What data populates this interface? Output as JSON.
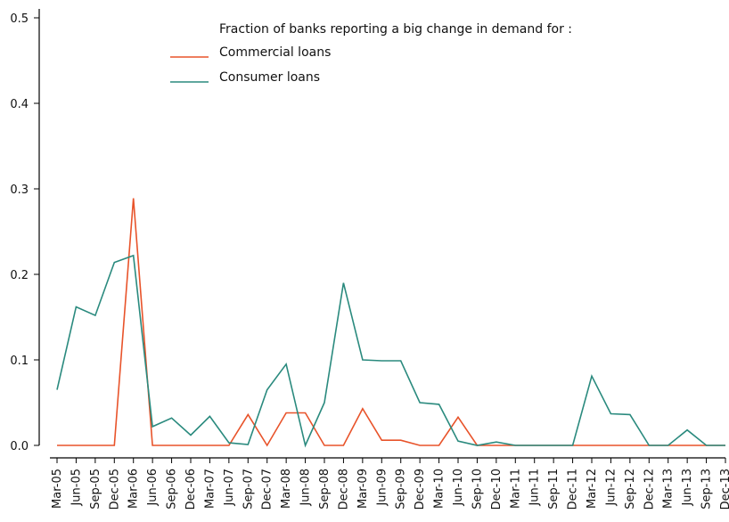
{
  "chart_data": {
    "type": "line",
    "title": "",
    "xlabel": "",
    "ylabel": "",
    "ylim": [
      0,
      0.5
    ],
    "yticks": [
      "0.0",
      "0.1",
      "0.2",
      "0.3",
      "0.4",
      "0.5"
    ],
    "grid": false,
    "legend": {
      "placement": "top-center",
      "title": "Fraction of banks reporting a big change in demand for :"
    },
    "categories": [
      "Mar-05",
      "Jun-05",
      "Sep-05",
      "Dec-05",
      "Mar-06",
      "Jun-06",
      "Sep-06",
      "Dec-06",
      "Mar-07",
      "Jun-07",
      "Sep-07",
      "Dec-07",
      "Mar-08",
      "Jun-08",
      "Sep-08",
      "Dec-08",
      "Mar-09",
      "Jun-09",
      "Sep-09",
      "Dec-09",
      "Mar-10",
      "Jun-10",
      "Sep-10",
      "Dec-10",
      "Mar-11",
      "Jun-11",
      "Sep-11",
      "Dec-11",
      "Mar-12",
      "Jun-12",
      "Sep-12",
      "Dec-12",
      "Mar-13",
      "Jun-13",
      "Sep-13",
      "Dec-13"
    ],
    "series": [
      {
        "name": "Commercial loans",
        "color": "#e8532a",
        "values": [
          0,
          0,
          0,
          0,
          0.289,
          0,
          0,
          0,
          0,
          0,
          0.036,
          0,
          0.038,
          0.038,
          0,
          0,
          0.043,
          0.006,
          0.006,
          0,
          0,
          0.033,
          0,
          0,
          0,
          0,
          0,
          0,
          0,
          0,
          0,
          0,
          0,
          0,
          0,
          0
        ]
      },
      {
        "name": "Consumer loans",
        "color": "#2a8a7e",
        "values": [
          0.065,
          0.162,
          0.152,
          0.214,
          0.222,
          0.022,
          0.032,
          0.012,
          0.034,
          0.003,
          0.001,
          0.065,
          0.095,
          0,
          0.05,
          0.19,
          0.1,
          0.099,
          0.099,
          0.05,
          0.048,
          0.005,
          0,
          0.004,
          0,
          0,
          0,
          0,
          0.081,
          0.037,
          0.036,
          0,
          0,
          0.018,
          0,
          0
        ]
      }
    ]
  }
}
